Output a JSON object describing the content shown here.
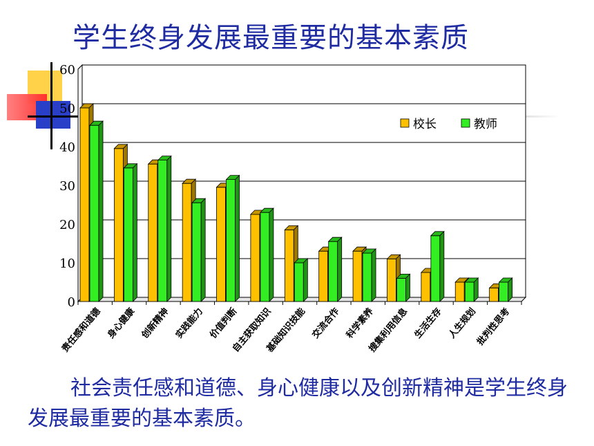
{
  "slide": {
    "title": "学生终身发展最重要的基本素质",
    "caption": "社会责任感和道德、身心健康以及创新精神是学生终身发展最重要的基本素质。"
  },
  "colors": {
    "title_text": "#1f2ba0",
    "series_principal": "#ffc000",
    "series_teacher": "#33ee22",
    "deco_yellow": "#ffd24a",
    "deco_red": "#ff3b3b",
    "deco_blue": "#2a3fc8"
  },
  "chart_data": {
    "type": "bar",
    "title": "",
    "xlabel": "",
    "ylabel": "",
    "ylim": [
      0,
      60
    ],
    "yticks": [
      0,
      10,
      20,
      30,
      40,
      50,
      60
    ],
    "grid": true,
    "legend_position": "top-right",
    "categories": [
      "责任感和道德",
      "身心健康",
      "创新精神",
      "实践能力",
      "价值判断",
      "自主获取知识",
      "基础知识技能",
      "交流合作",
      "科学素养",
      "搜集利用信息",
      "生活生存",
      "人生规划",
      "批判性思考"
    ],
    "series": [
      {
        "name": "校长",
        "values": [
          50,
          39.5,
          35.5,
          30.5,
          29.5,
          22.5,
          18.5,
          13,
          13,
          11,
          7.5,
          5,
          3.5
        ]
      },
      {
        "name": "教师",
        "values": [
          45.5,
          34.5,
          36.5,
          25.5,
          31.5,
          23,
          10,
          15.5,
          12.5,
          6,
          17,
          5,
          5
        ]
      }
    ]
  }
}
